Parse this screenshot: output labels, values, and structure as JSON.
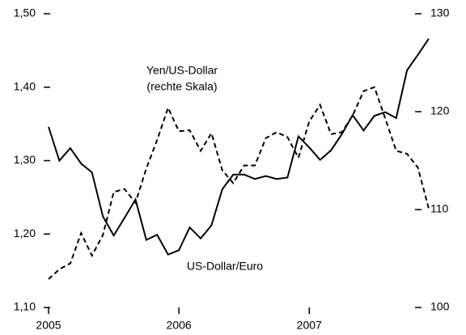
{
  "chart_data": {
    "type": "line",
    "annotations": [
      "Yen/US-Dollar",
      "(rechte Skala)",
      "US-Dollar/Euro"
    ],
    "x": [
      2005,
      2005.083,
      2005.167,
      2005.25,
      2005.333,
      2005.417,
      2005.5,
      2005.583,
      2005.667,
      2005.75,
      2005.833,
      2005.917,
      2006,
      2006.083,
      2006.167,
      2006.25,
      2006.333,
      2006.417,
      2006.5,
      2006.583,
      2006.667,
      2006.75,
      2006.833,
      2006.917,
      2007,
      2007.083,
      2007.167,
      2007.25,
      2007.333,
      2007.417,
      2007.5,
      2007.583,
      2007.667,
      2007.75,
      2007.833,
      2007.917
    ],
    "series": [
      {
        "name": "US-Dollar/Euro",
        "color": "#000000",
        "dash": false,
        "values": [
          1.346,
          1.3,
          1.317,
          1.296,
          1.284,
          1.224,
          1.198,
          1.222,
          1.247,
          1.192,
          1.199,
          1.172,
          1.178,
          1.209,
          1.194,
          1.212,
          1.261,
          1.281,
          1.281,
          1.275,
          1.279,
          1.275,
          1.277,
          1.333,
          1.318,
          1.301,
          1.314,
          1.336,
          1.362,
          1.341,
          1.361,
          1.366,
          1.358,
          1.423,
          1.444,
          1.466
        ]
      },
      {
        "name": "Yen/US-Dollar",
        "color": "#000000",
        "dash": true,
        "axis": "y2",
        "values": [
          102.9,
          103.9,
          104.5,
          107.6,
          105.3,
          107.4,
          111.8,
          112.1,
          110.7,
          114.2,
          117.1,
          120.4,
          118.0,
          118.1,
          116.0,
          117.8,
          114.0,
          112.7,
          114.5,
          114.5,
          117.3,
          117.9,
          117.4,
          115.3,
          119.0,
          120.7,
          117.7,
          117.9,
          119.6,
          122.1,
          122.5,
          119.3,
          116.0,
          115.7,
          114.3,
          110.1
        ]
      }
    ],
    "xlim": [
      2005,
      2007.917
    ],
    "xticks": [
      2005,
      2006,
      2007
    ],
    "ylim": [
      1.1,
      1.5
    ],
    "yticks": [
      {
        "value": 1.1,
        "label": "1,10"
      },
      {
        "value": 1.2,
        "label": "1,20"
      },
      {
        "value": 1.3,
        "label": "1,30"
      },
      {
        "value": 1.4,
        "label": "1,40"
      },
      {
        "value": 1.5,
        "label": "1,50"
      }
    ],
    "y2lim": [
      100,
      130
    ],
    "y2ticks": [
      100,
      110,
      120,
      130
    ]
  }
}
